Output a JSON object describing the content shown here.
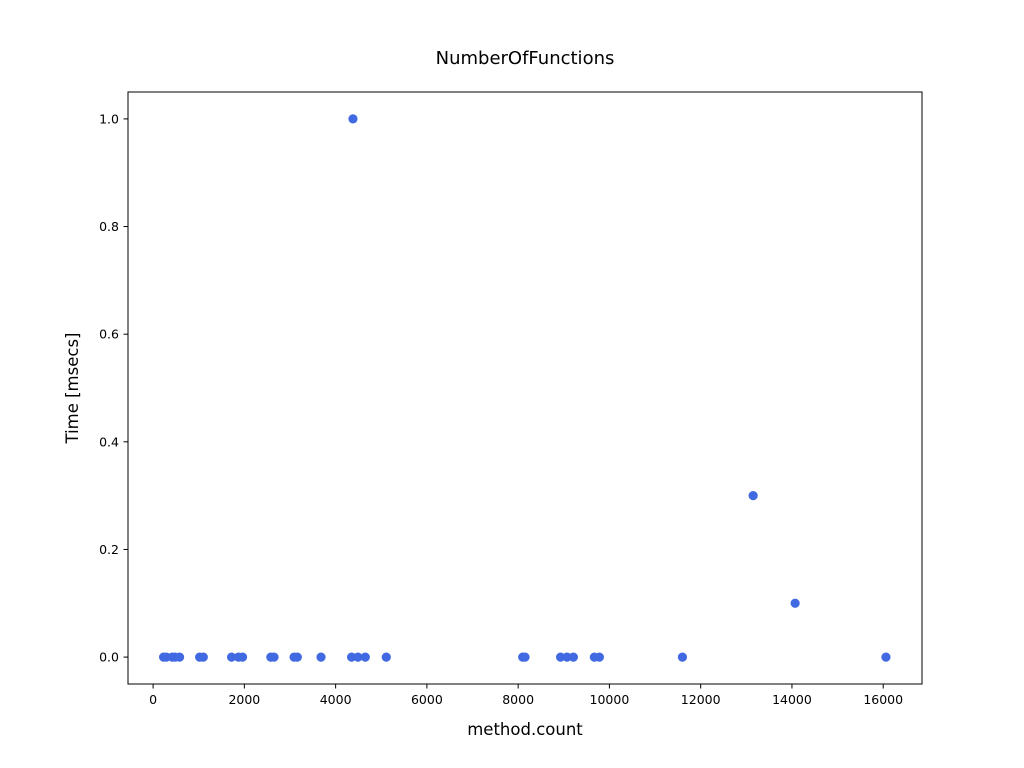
{
  "chart_data": {
    "type": "scatter",
    "title": "NumberOfFunctions",
    "xlabel": "method.count",
    "ylabel": "Time [msecs]",
    "xlim": [
      -550,
      16850
    ],
    "ylim": [
      -0.05,
      1.05
    ],
    "xticks": [
      0,
      2000,
      4000,
      6000,
      8000,
      10000,
      12000,
      14000,
      16000
    ],
    "xtick_labels": [
      "0",
      "2000",
      "4000",
      "6000",
      "8000",
      "10000",
      "12000",
      "14000",
      "16000"
    ],
    "yticks": [
      0.0,
      0.2,
      0.4,
      0.6,
      0.8,
      1.0
    ],
    "ytick_labels": [
      "0.0",
      "0.2",
      "0.4",
      "0.6",
      "0.8",
      "1.0"
    ],
    "grid": false,
    "marker_color": "#4169e1",
    "series": [
      {
        "points": [
          {
            "x": 230,
            "y": 0.0
          },
          {
            "x": 290,
            "y": 0.0
          },
          {
            "x": 420,
            "y": 0.0
          },
          {
            "x": 480,
            "y": 0.0
          },
          {
            "x": 580,
            "y": 0.0
          },
          {
            "x": 1020,
            "y": 0.0
          },
          {
            "x": 1100,
            "y": 0.0
          },
          {
            "x": 1720,
            "y": 0.0
          },
          {
            "x": 1870,
            "y": 0.0
          },
          {
            "x": 1960,
            "y": 0.0
          },
          {
            "x": 2580,
            "y": 0.0
          },
          {
            "x": 2650,
            "y": 0.0
          },
          {
            "x": 3090,
            "y": 0.0
          },
          {
            "x": 3160,
            "y": 0.0
          },
          {
            "x": 3680,
            "y": 0.0
          },
          {
            "x": 4350,
            "y": 0.0
          },
          {
            "x": 4380,
            "y": 1.0
          },
          {
            "x": 4490,
            "y": 0.0
          },
          {
            "x": 4650,
            "y": 0.0
          },
          {
            "x": 5110,
            "y": 0.0
          },
          {
            "x": 8100,
            "y": 0.0
          },
          {
            "x": 8150,
            "y": 0.0
          },
          {
            "x": 8930,
            "y": 0.0
          },
          {
            "x": 9070,
            "y": 0.0
          },
          {
            "x": 9210,
            "y": 0.0
          },
          {
            "x": 9670,
            "y": 0.0
          },
          {
            "x": 9780,
            "y": 0.0
          },
          {
            "x": 11600,
            "y": 0.0
          },
          {
            "x": 13150,
            "y": 0.3
          },
          {
            "x": 14070,
            "y": 0.1
          },
          {
            "x": 16060,
            "y": 0.0
          }
        ]
      }
    ]
  }
}
